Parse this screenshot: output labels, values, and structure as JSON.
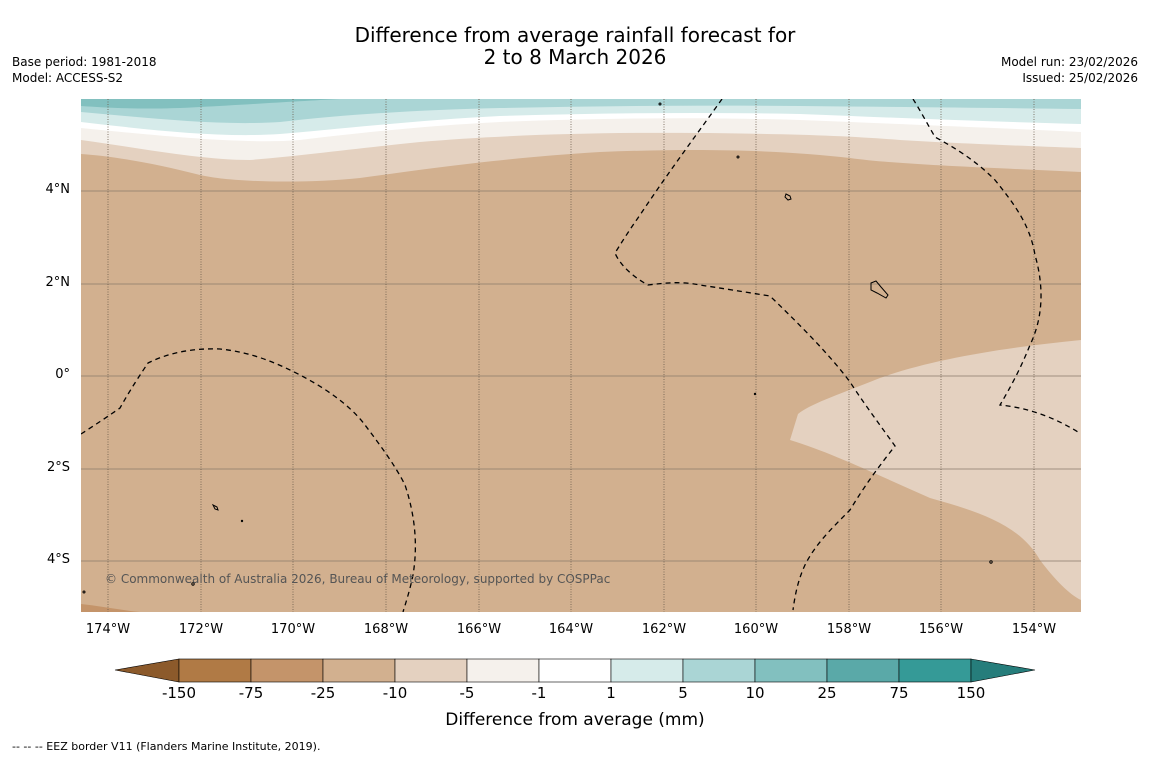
{
  "title": {
    "line1": "Difference from average rainfall forecast for",
    "line2": "2 to 8 March 2026"
  },
  "meta_left": {
    "base_period": "Base period: 1981-2018",
    "model": "Model: ACCESS-S2"
  },
  "meta_right": {
    "model_run": "Model run: 23/02/2026",
    "issued": "Issued: 25/02/2026"
  },
  "lat_labels": [
    "4°N",
    "2°N",
    "0°",
    "2°S",
    "4°S"
  ],
  "lon_labels": [
    "174°W",
    "172°W",
    "170°W",
    "168°W",
    "166°W",
    "164°W",
    "162°W",
    "160°W",
    "158°W",
    "156°W",
    "154°W"
  ],
  "copyright": "© Commonwealth of Australia 2026, Bureau of Meteorology, supported by COSPPac",
  "colorbar": {
    "ticks": [
      "-150",
      "-75",
      "-25",
      "-10",
      "-5",
      "-1",
      "1",
      "5",
      "10",
      "25",
      "75",
      "150"
    ],
    "colors": [
      "#8c5a2b",
      "#b07a45",
      "#c4946a",
      "#d2b08f",
      "#e4d1c0",
      "#f5f1ec",
      "#ffffff",
      "#d6ebea",
      "#aad5d5",
      "#82c0bf",
      "#5aa9a8",
      "#359a97",
      "#267d7b"
    ],
    "label": "Difference from average (mm)"
  },
  "map": {
    "lon_min": -174.6,
    "lon_max": -153.0,
    "lat_min": -5.2,
    "lat_max": 5.9
  },
  "footer": "--  --  -- EEZ border V11 (Flanders Marine Institute, 2019)."
}
